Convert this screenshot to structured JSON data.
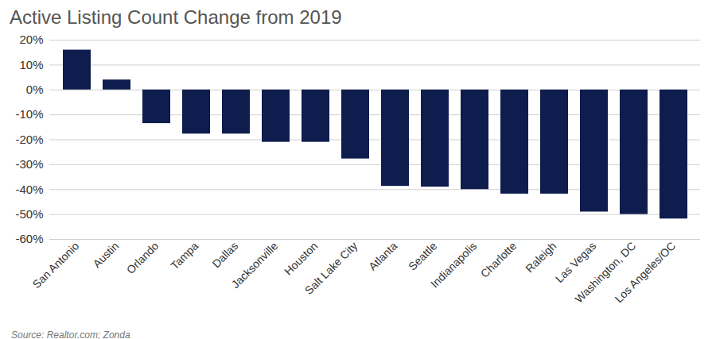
{
  "chart_data": {
    "type": "bar",
    "title": "Active Listing Count Change from 2019",
    "caption": "Source: Realtor.com; Zonda",
    "categories": [
      "San Antonio",
      "Austin",
      "Orlando",
      "Tampa",
      "Dallas",
      "Jacksonville",
      "Houston",
      "Salt Lake City",
      "Atlanta",
      "Seattle",
      "Indianapolis",
      "Charlotte",
      "Raleigh",
      "Las Vegas",
      "Washington, DC",
      "Los Angeles/OC"
    ],
    "values": [
      16,
      4,
      -13.5,
      -17.7,
      -17.7,
      -21,
      -21,
      -27.7,
      -38.7,
      -39,
      -40,
      -41.8,
      -41.8,
      -49,
      -50,
      -51.8
    ],
    "color": "#0e1d4d",
    "ylim": [
      -60,
      20
    ],
    "yticks": [
      {
        "value": -60,
        "label": "-60%"
      },
      {
        "value": -50,
        "label": "-50%"
      },
      {
        "value": -40,
        "label": "-40%"
      },
      {
        "value": -30,
        "label": "-30%"
      },
      {
        "value": -20,
        "label": "-20%"
      },
      {
        "value": -10,
        "label": "-10%"
      },
      {
        "value": 0,
        "label": "0%"
      },
      {
        "value": 10,
        "label": "10%"
      },
      {
        "value": 20,
        "label": "20%"
      }
    ],
    "grid": true
  }
}
